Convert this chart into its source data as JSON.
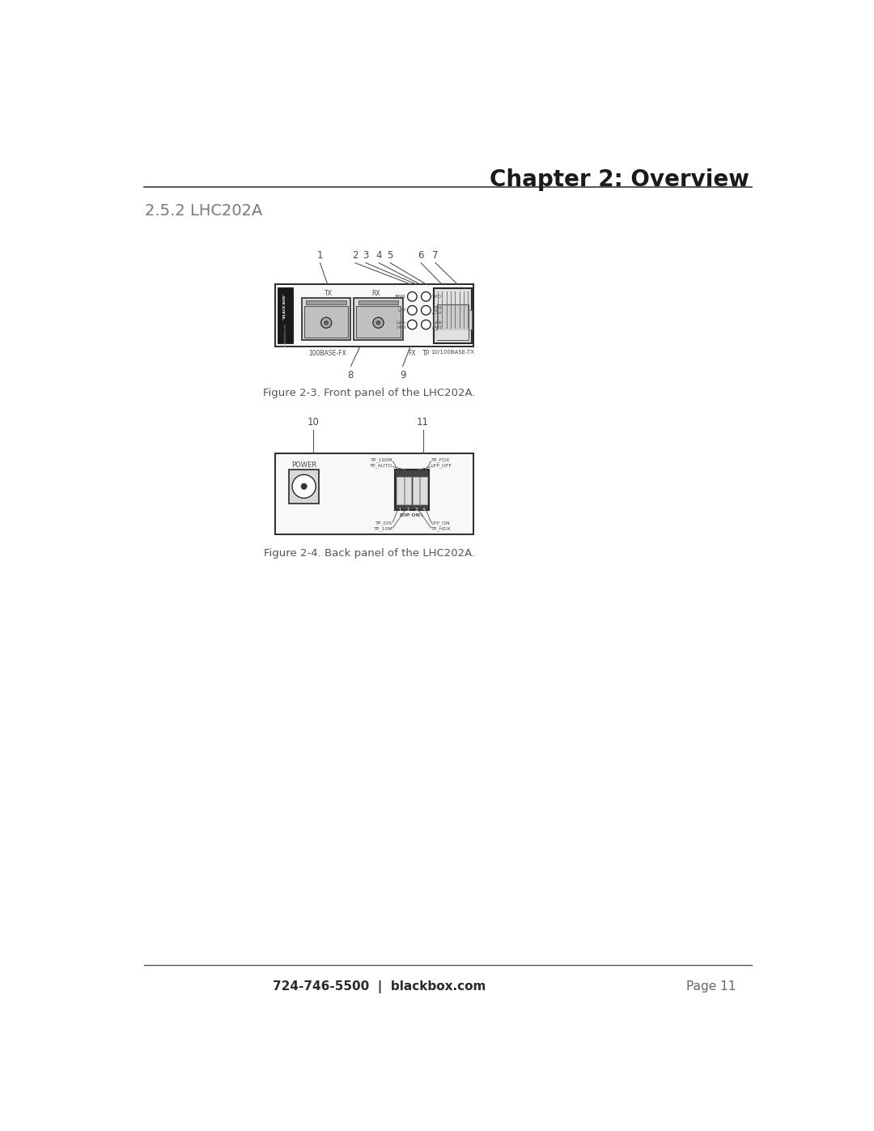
{
  "page_title": "Chapter 2: Overview",
  "section_title": "2.5.2 LHC202A",
  "fig1_caption": "Figure 2-3. Front panel of the LHC202A.",
  "fig2_caption": "Figure 2-4. Back panel of the LHC202A.",
  "footer_left": "724-746-5500  |  blackbox.com",
  "footer_right": "Page 11",
  "bg_color": "#ffffff",
  "line_color": "#3a3a3a",
  "text_color": "#4a4a4a",
  "title_color": "#1a1a1a",
  "gray_text": "#666666",
  "panel_face": "#f8f8f8",
  "panel_edge": "#2a2a2a",
  "note_color": "#555555"
}
